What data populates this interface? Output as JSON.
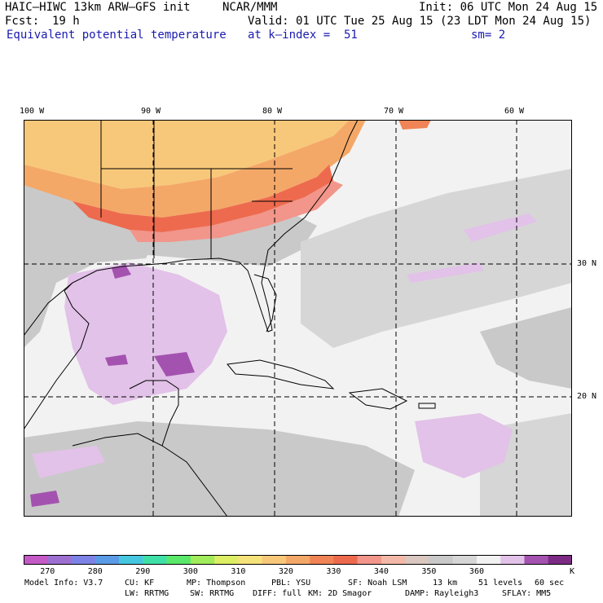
{
  "header": {
    "model": "HAIC–HIWC 13km ARW–GFS init",
    "org": "NCAR/MMM",
    "init": "Init: 06 UTC Mon 24 Aug 15",
    "fcst_label": "Fcst:",
    "fcst_value": "19 h",
    "valid": "Valid: 01 UTC Tue 25 Aug 15 (23 LDT Mon 24 Aug 15)",
    "field": "Equivalent potential temperature",
    "level": "at k–index =  51",
    "smooth": "sm= 2"
  },
  "map": {
    "lon_labels": [
      "100 W",
      "90 W",
      "80 W",
      "70 W",
      "60 W"
    ],
    "lat_labels": [
      "30 N",
      "20 N"
    ],
    "colors": {
      "grid": "#000000",
      "background_gray": "#bebebe",
      "light_gray": "#dcdcdc",
      "ocean_white": "#f2f2f2",
      "lavender": "#e2c2e8",
      "purple": "#9a3fb0",
      "warm_orange": "#f4b26b",
      "tan": "#f8c87a",
      "red": "#f26a4a",
      "salmon": "#f49a84"
    }
  },
  "colorbar": {
    "colors": [
      "#c35ac6",
      "#9d6fd0",
      "#7d82e6",
      "#5a9be8",
      "#46c7e0",
      "#3fe0a8",
      "#5ae86a",
      "#a0ec5a",
      "#dcee64",
      "#f5e27a",
      "#f8c87a",
      "#f4a868",
      "#f08456",
      "#ee6a4e",
      "#f2958a",
      "#f4b8a8",
      "#d9c7c0",
      "#c9c9c9",
      "#d6d6d6",
      "#f2f2f2",
      "#e2c2e8",
      "#a452b0",
      "#7c2a84"
    ],
    "ticks": [
      "270",
      "280",
      "290",
      "300",
      "310",
      "320",
      "330",
      "340",
      "350",
      "360"
    ],
    "unit": "K"
  },
  "footer": {
    "row1": [
      "Model Info: V3.7",
      "CU: KF",
      "MP: Thompson",
      "PBL: YSU",
      "SF: Noah LSM",
      "13 km",
      "51 levels",
      "60 sec"
    ],
    "row2": [
      "LW: RRTMG",
      "SW: RRTMG",
      "DIFF: full",
      "KM: 2D Smagor",
      "DAMP: Rayleigh3",
      "SFLAY: MM5"
    ]
  }
}
